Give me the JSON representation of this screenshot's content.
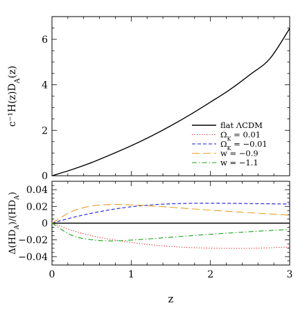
{
  "chart_data": [
    {
      "type": "line",
      "panel": "top",
      "ylabel": "c⁻¹H(z)D_A(z)",
      "xlim": [
        0,
        3
      ],
      "ylim": [
        0,
        7
      ],
      "yticks": [
        0,
        2,
        4,
        6
      ],
      "ytick_labels": [
        "0",
        "2",
        "4",
        "6"
      ],
      "grid": false,
      "series": [
        {
          "name": "flat ΛCDM",
          "color": "#000000",
          "dash": "solid",
          "x": [
            0,
            0.25,
            0.5,
            0.75,
            1.0,
            1.25,
            1.5,
            1.75,
            2.0,
            2.25,
            2.5,
            2.75,
            3.0
          ],
          "values": [
            0,
            0.27,
            0.58,
            0.94,
            1.32,
            1.74,
            2.2,
            2.7,
            3.24,
            3.8,
            4.45,
            5.15,
            6.48
          ]
        }
      ],
      "legend": {
        "placement": "bottom-right",
        "entries": [
          {
            "label": "flat ΛCDM",
            "color": "#000000",
            "dash": "solid"
          },
          {
            "label": "Ω_K = 0.01",
            "color": "#d32020",
            "dash": "dotted"
          },
          {
            "label": "Ω_K = −0.01",
            "color": "#1a1ad8",
            "dash": "dashed"
          },
          {
            "label": "w = −0.9",
            "color": "#e8a020",
            "dash": "longdash"
          },
          {
            "label": "w = −1.1",
            "color": "#1aa31a",
            "dash": "dashdot"
          }
        ]
      }
    },
    {
      "type": "line",
      "panel": "bottom",
      "xlabel": "z",
      "ylabel": "Δ(HD_A)/(HD_A)",
      "xlim": [
        0,
        3
      ],
      "ylim": [
        -0.05,
        0.05
      ],
      "xticks": [
        0,
        1,
        2,
        3
      ],
      "xtick_labels": [
        "0",
        "1",
        "2",
        "3"
      ],
      "yticks": [
        -0.04,
        -0.02,
        0,
        0.02,
        0.04
      ],
      "ytick_labels": [
        "−0.04",
        "−0.02",
        "0",
        "0.02",
        "0.04"
      ],
      "grid": false,
      "series": [
        {
          "name": "flat ΛCDM",
          "color": "#000000",
          "dash": "solid",
          "x": [
            0,
            3
          ],
          "values": [
            0,
            0
          ]
        },
        {
          "name": "Ω_K = 0.01",
          "color": "#d32020",
          "dash": "dotted",
          "x": [
            0,
            0.25,
            0.5,
            0.75,
            1.0,
            1.25,
            1.5,
            1.75,
            2.0,
            2.25,
            2.5,
            2.75,
            3.0
          ],
          "values": [
            0,
            -0.0085,
            -0.015,
            -0.0195,
            -0.023,
            -0.0258,
            -0.0278,
            -0.0292,
            -0.0298,
            -0.0301,
            -0.03,
            -0.0294,
            -0.0285
          ]
        },
        {
          "name": "Ω_K = −0.01",
          "color": "#1a1ad8",
          "dash": "dashed",
          "x": [
            0,
            0.25,
            0.5,
            0.75,
            1.0,
            1.25,
            1.5,
            1.75,
            2.0,
            2.25,
            2.5,
            2.75,
            3.0
          ],
          "values": [
            0,
            0.0065,
            0.0118,
            0.0163,
            0.0196,
            0.0218,
            0.0231,
            0.0237,
            0.0238,
            0.0237,
            0.0234,
            0.0231,
            0.0228
          ]
        },
        {
          "name": "w = −0.9",
          "color": "#e8a020",
          "dash": "longdash",
          "x": [
            0,
            0.25,
            0.5,
            0.75,
            1.0,
            1.25,
            1.5,
            1.75,
            2.0,
            2.25,
            2.5,
            2.75,
            3.0
          ],
          "values": [
            0,
            0.014,
            0.0205,
            0.0222,
            0.0218,
            0.0205,
            0.019,
            0.0172,
            0.0155,
            0.014,
            0.0125,
            0.011,
            0.0095
          ]
        },
        {
          "name": "w = −1.1",
          "color": "#1aa31a",
          "dash": "dashdot",
          "x": [
            0,
            0.25,
            0.5,
            0.75,
            1.0,
            1.25,
            1.5,
            1.75,
            2.0,
            2.25,
            2.5,
            2.75,
            3.0
          ],
          "values": [
            0,
            -0.0145,
            -0.0198,
            -0.0212,
            -0.0202,
            -0.0186,
            -0.0168,
            -0.015,
            -0.0133,
            -0.0117,
            -0.0102,
            -0.0088,
            -0.0075
          ]
        }
      ]
    }
  ]
}
